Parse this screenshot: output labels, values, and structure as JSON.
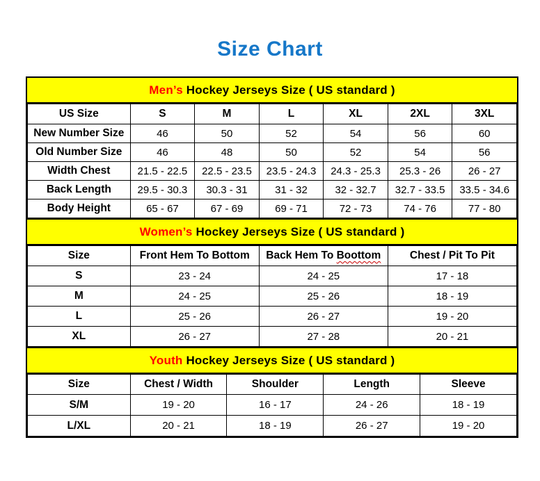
{
  "page": {
    "title": "Size Chart",
    "colors": {
      "title_blue": "#1577C8",
      "banner_yellow": "#FFFF00",
      "highlight_red": "#FF0000",
      "border_black": "#000000"
    }
  },
  "sections": [
    {
      "id": "mens",
      "title_highlight": "Men’s",
      "title_rest": " Hockey Jerseys Size ( US standard )",
      "columns": [
        "US Size",
        "S",
        "M",
        "L",
        "XL",
        "2XL",
        "3XL"
      ],
      "rows": [
        {
          "label": "New Number Size",
          "values": [
            "46",
            "50",
            "52",
            "54",
            "56",
            "60"
          ]
        },
        {
          "label": "Old Number Size",
          "values": [
            "46",
            "48",
            "50",
            "52",
            "54",
            "56"
          ]
        },
        {
          "label": "Width Chest",
          "values": [
            "21.5 - 22.5",
            "22.5 - 23.5",
            "23.5 - 24.3",
            "24.3 - 25.3",
            "25.3 - 26",
            "26 - 27"
          ]
        },
        {
          "label": "Back Length",
          "values": [
            "29.5 - 30.3",
            "30.3 - 31",
            "31 - 32",
            "32 - 32.7",
            "32.7 - 33.5",
            "33.5 - 34.6"
          ]
        },
        {
          "label": "Body Height",
          "values": [
            "65 - 67",
            "67 - 69",
            "69 - 71",
            "72 - 73",
            "74 - 76",
            "77 - 80"
          ]
        }
      ]
    },
    {
      "id": "womens",
      "title_highlight": "Women’s",
      "title_rest": " Hockey Jerseys Size ( US standard )",
      "columns": [
        "Size",
        "Front Hem To Bottom",
        {
          "label": "Back Hem To Boottom",
          "underline_word": "Boottom"
        },
        "Chest / Pit To Pit"
      ],
      "rows": [
        {
          "label": "S",
          "values": [
            "23 - 24",
            "24 - 25",
            "17 - 18"
          ]
        },
        {
          "label": "M",
          "values": [
            "24 - 25",
            "25 - 26",
            "18 - 19"
          ]
        },
        {
          "label": "L",
          "values": [
            "25 - 26",
            "26 - 27",
            "19 - 20"
          ]
        },
        {
          "label": "XL",
          "values": [
            "26 - 27",
            "27 - 28",
            "20 - 21"
          ]
        }
      ]
    },
    {
      "id": "youth",
      "title_highlight": "Youth",
      "title_rest": " Hockey Jerseys Size ( US standard )",
      "columns": [
        "Size",
        "Chest / Width",
        "Shoulder",
        "Length",
        "Sleeve"
      ],
      "rows": [
        {
          "label": "S/M",
          "values": [
            "19 - 20",
            "16 - 17",
            "24 - 26",
            "18 - 19"
          ]
        },
        {
          "label": "L/XL",
          "values": [
            "20 - 21",
            "18 - 19",
            "26 - 27",
            "19 - 20"
          ]
        }
      ]
    }
  ]
}
